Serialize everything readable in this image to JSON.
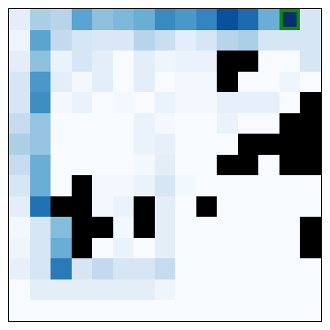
{
  "grid": {
    "rows": 15,
    "cols": 15,
    "colors": {
      "wall": "#000000",
      "goal_border": "#0a8a0a",
      "background": "#f7fbff"
    },
    "goal": {
      "row": 0,
      "col": 13
    },
    "cells": [
      [
        "#e3eef9",
        "#a9cfe5",
        "#b7d4ea",
        "#5ba3d0",
        "#8cc0dd",
        "#7db8da",
        "#6aaed6",
        "#3a8ac2",
        "#4a98c9",
        "#3484bf",
        "#08519c",
        "#1c6ab0",
        "#6aaed6",
        "#08306b",
        "#d6e6f4"
      ],
      [
        "#eef5fc",
        "#5ba3d0",
        "#c2d9ee",
        "#d6e6f4",
        "#dae8f6",
        "#dae8f6",
        "#b7d4ea",
        "#cbdef1",
        "#e3eef9",
        "#d6e6f4",
        "#b7d4ea",
        "#abd0e6",
        "#d6e6f4",
        "#d6e6f4",
        "#d6e6f4"
      ],
      [
        "#e3eef9",
        "#8cc0dd",
        "#eaf2fb",
        "#d6e6f4",
        "#e3eef9",
        "#f7fbff",
        "#e3eef9",
        "#eef5fc",
        "#eaf2fb",
        "#eaf2fb",
        "#000000",
        "#000000",
        "#f7fbff",
        "#f7fbff",
        "#d6e6f4"
      ],
      [
        "#d6e6f4",
        "#4a98c9",
        "#e3eef9",
        "#f2f8fd",
        "#e3eef9",
        "#f7fbff",
        "#e3eef9",
        "#f7fbff",
        "#f2f8fd",
        "#f2f8fd",
        "#000000",
        "#f7fbff",
        "#f7fbff",
        "#eef5fc",
        "#f7fbff"
      ],
      [
        "#d6e6f4",
        "#3e8ec4",
        "#f2f8fd",
        "#eaf2fb",
        "#f7fbff",
        "#f2f8fd",
        "#f7fbff",
        "#eaf2fb",
        "#f2f8fd",
        "#f2f8fd",
        "#e7f0fa",
        "#e7f0fa",
        "#e7f0fa",
        "#f7fbff",
        "#000000"
      ],
      [
        "#c6dbef",
        "#94c4df",
        "#f7fbff",
        "#f7fbff",
        "#f7fbff",
        "#f7fbff",
        "#eaf2fb",
        "#f2f8fd",
        "#f7fbff",
        "#f7fbff",
        "#eaf2fb",
        "#f7fbff",
        "#f7fbff",
        "#000000",
        "#000000"
      ],
      [
        "#abd0e6",
        "#94c4df",
        "#f7fbff",
        "#f7fbff",
        "#f7fbff",
        "#f7fbff",
        "#eaf2fb",
        "#e7f0fa",
        "#f7fbff",
        "#f7fbff",
        "#f7fbff",
        "#000000",
        "#000000",
        "#000000",
        "#000000"
      ],
      [
        "#c6dbef",
        "#6aaed6",
        "#f7fbff",
        "#f7fbff",
        "#f7fbff",
        "#f7fbff",
        "#f2f8fd",
        "#e3eef9",
        "#f7fbff",
        "#f7fbff",
        "#000000",
        "#000000",
        "#f7fbff",
        "#000000",
        "#000000"
      ],
      [
        "#d6e6f4",
        "#6aaed6",
        "#f7fbff",
        "#000000",
        "#f2f8fd",
        "#f2f8fd",
        "#eaf2fb",
        "#d6e6f4",
        "#f2f8fd",
        "#f7fbff",
        "#f7fbff",
        "#f7fbff",
        "#f7fbff",
        "#f7fbff",
        "#f7fbff"
      ],
      [
        "#e3eef9",
        "#2171b5",
        "#000000",
        "#000000",
        "#f2f8fd",
        "#eaf2fb",
        "#000000",
        "#e3eef9",
        "#f7fbff",
        "#000000",
        "#f7fbff",
        "#f7fbff",
        "#f7fbff",
        "#f7fbff",
        "#f7fbff"
      ],
      [
        "#f2f8fd",
        "#d6e6f4",
        "#84bcdb",
        "#000000",
        "#000000",
        "#f2f8fd",
        "#000000",
        "#e3eef9",
        "#f7fbff",
        "#f7fbff",
        "#f7fbff",
        "#f7fbff",
        "#f7fbff",
        "#f7fbff",
        "#000000"
      ],
      [
        "#eef5fc",
        "#d6e6f4",
        "#6aaed6",
        "#000000",
        "#f7fbff",
        "#eaf2fb",
        "#f7fbff",
        "#e3eef9",
        "#f7fbff",
        "#f7fbff",
        "#f7fbff",
        "#f7fbff",
        "#f7fbff",
        "#f7fbff",
        "#000000"
      ],
      [
        "#e7f0fa",
        "#d6e6f4",
        "#2a7ab9",
        "#d6e6f4",
        "#c2d9ee",
        "#d6e6f4",
        "#d6e6f4",
        "#c6dbef",
        "#f7fbff",
        "#f7fbff",
        "#f7fbff",
        "#f7fbff",
        "#f7fbff",
        "#f7fbff",
        "#f7fbff"
      ],
      [
        "#f7fbff",
        "#e3eef9",
        "#e3eef9",
        "#e3eef9",
        "#e3eef9",
        "#e3eef9",
        "#e3eef9",
        "#eef5fc",
        "#f7fbff",
        "#f7fbff",
        "#f7fbff",
        "#f7fbff",
        "#f7fbff",
        "#f7fbff",
        "#f7fbff"
      ],
      [
        "#f7fbff",
        "#f7fbff",
        "#f7fbff",
        "#f7fbff",
        "#f7fbff",
        "#f7fbff",
        "#f7fbff",
        "#f7fbff",
        "#f7fbff",
        "#f7fbff",
        "#f7fbff",
        "#f7fbff",
        "#f7fbff",
        "#f7fbff",
        "#f7fbff"
      ]
    ]
  }
}
